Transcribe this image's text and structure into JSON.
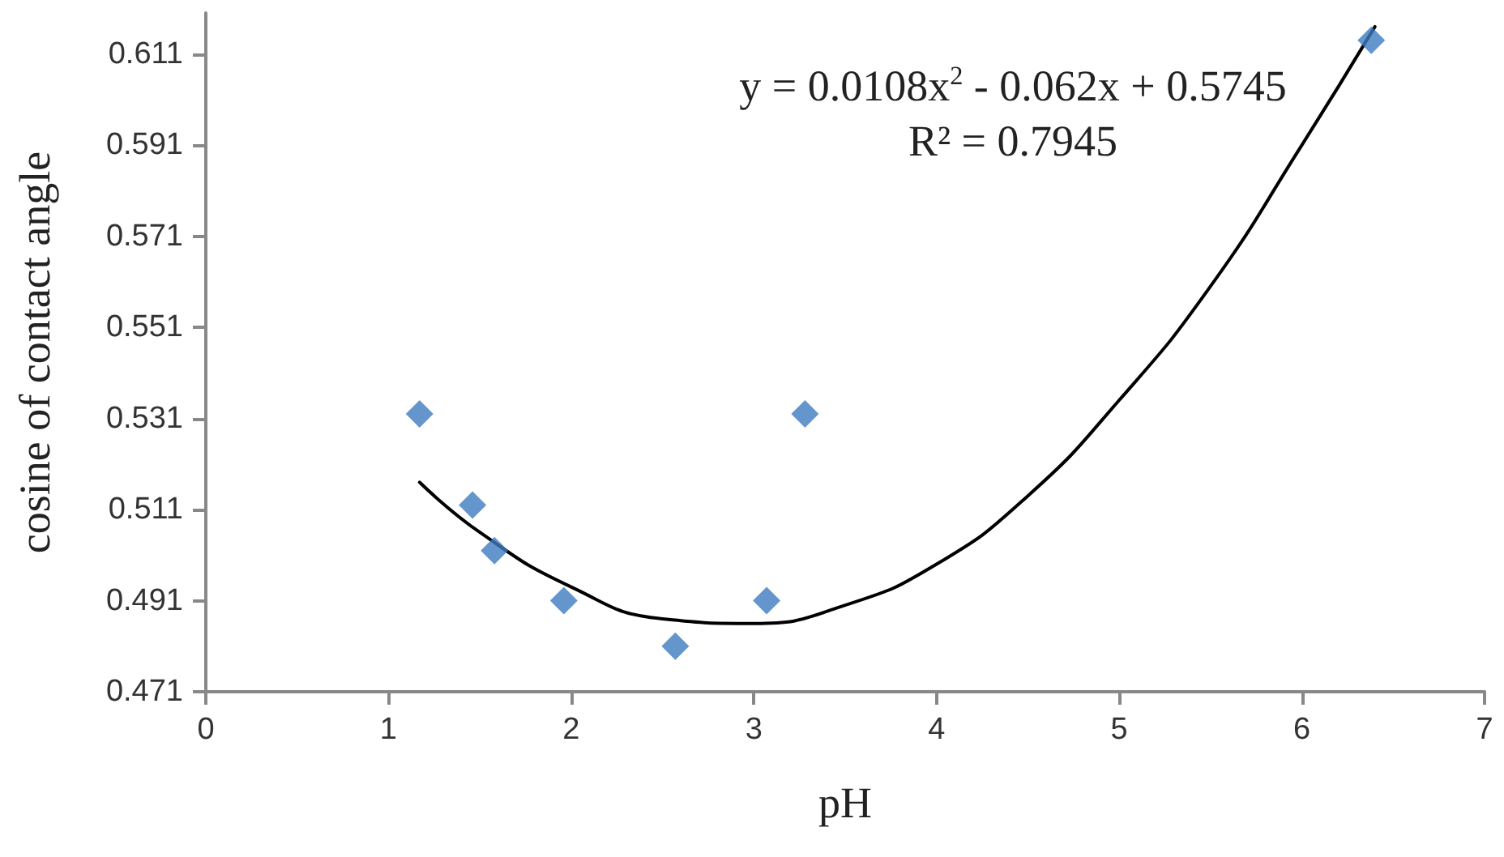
{
  "chart_data": {
    "type": "scatter",
    "xlabel": "pH",
    "ylabel": "cosine of contact angle",
    "annotations": [
      "y = 0.0108x$^{2}$ - 0.062x + 0.5745",
      "R² = 0.7945"
    ],
    "x": [
      1.17,
      1.46,
      1.58,
      1.96,
      2.57,
      3.07,
      3.28,
      6.38
    ],
    "series": [
      {
        "color": "#3d7cc0",
        "marker": "diamond",
        "values": [
          0.532,
          0.512,
          0.502,
          0.491,
          0.481,
          0.491,
          0.532,
          0.614
        ]
      },
      {
        "type": "line",
        "color": "#000000",
        "marker": "none",
        "x": [
          1.17,
          1.5,
          2,
          2.5,
          3,
          3.5,
          4,
          4.5,
          5,
          5.5,
          6,
          6.4
        ],
        "values": [
          0.517,
          0.506,
          0.494,
          0.487,
          0.486,
          0.49,
          0.499,
          0.514,
          0.535,
          0.56,
          0.591,
          0.617
        ]
      }
    ],
    "xlim": [
      0,
      7
    ],
    "xticks": [
      0,
      1,
      2,
      3,
      4,
      5,
      6,
      7
    ],
    "ylim": [
      0.471,
      0.62
    ],
    "yticks": [
      0.471,
      0.491,
      0.511,
      0.531,
      0.551,
      0.571,
      0.591,
      0.611
    ],
    "grid": false
  }
}
